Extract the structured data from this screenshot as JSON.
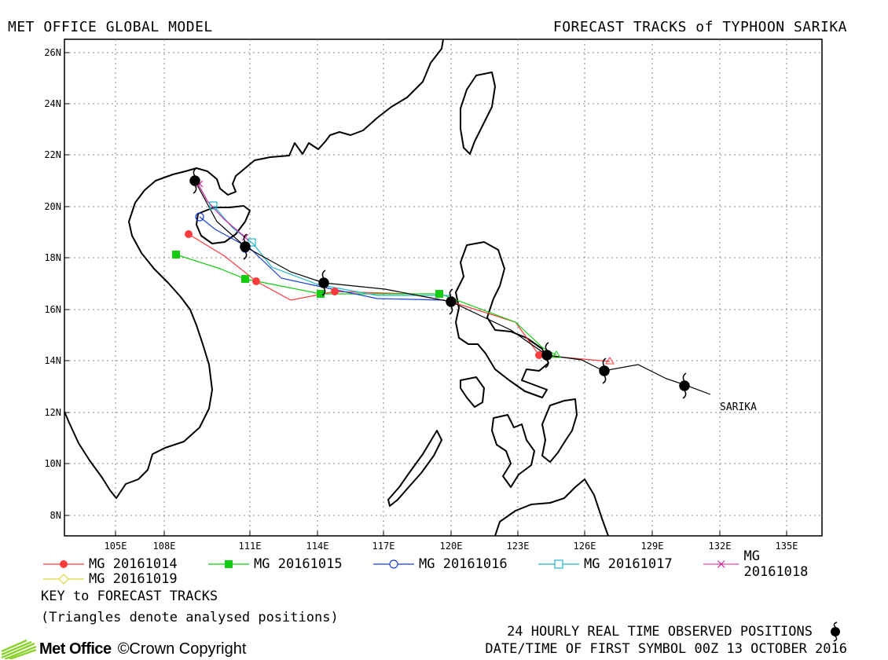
{
  "header": {
    "left_title": "MET OFFICE GLOBAL MODEL",
    "right_title": "FORECAST TRACKS of TYPHOON SARIKA"
  },
  "map": {
    "lon_labels": [
      "105E",
      "108E",
      "111E",
      "114E",
      "117E",
      "120E",
      "123E",
      "126E",
      "129E",
      "132E",
      "135E"
    ],
    "lat_labels": [
      "26N",
      "24N",
      "22N",
      "20N",
      "18N",
      "16N",
      "14N",
      "12N",
      "10N",
      "8N"
    ],
    "storm_label": "SARIKA"
  },
  "legend": {
    "items": [
      {
        "label": "MG 20161014",
        "color": "#ff3b3b",
        "marker": "filled-circle"
      },
      {
        "label": "MG 20161015",
        "color": "#11cc11",
        "marker": "filled-square"
      },
      {
        "label": "MG 20161016",
        "color": "#1a3fd6",
        "marker": "open-circle"
      },
      {
        "label": "MG 20161017",
        "color": "#22b5cc",
        "marker": "open-square"
      },
      {
        "label": "MG 20161018",
        "color": "#cc2299",
        "marker": "cross"
      },
      {
        "label": "MG 20161019",
        "color": "#d9d63a",
        "marker": "open-diamond"
      }
    ],
    "key_title": "KEY to FORECAST TRACKS",
    "key_note": "(Triangles denote analysed positions)"
  },
  "footer": {
    "observed_note": "24 HOURLY REAL TIME OBSERVED POSITIONS",
    "first_symbol": "DATE/TIME OF FIRST SYMBOL 00Z 13 OCTOBER 2016",
    "logo_name": "Met Office",
    "copyright": "©Crown Copyright"
  }
}
